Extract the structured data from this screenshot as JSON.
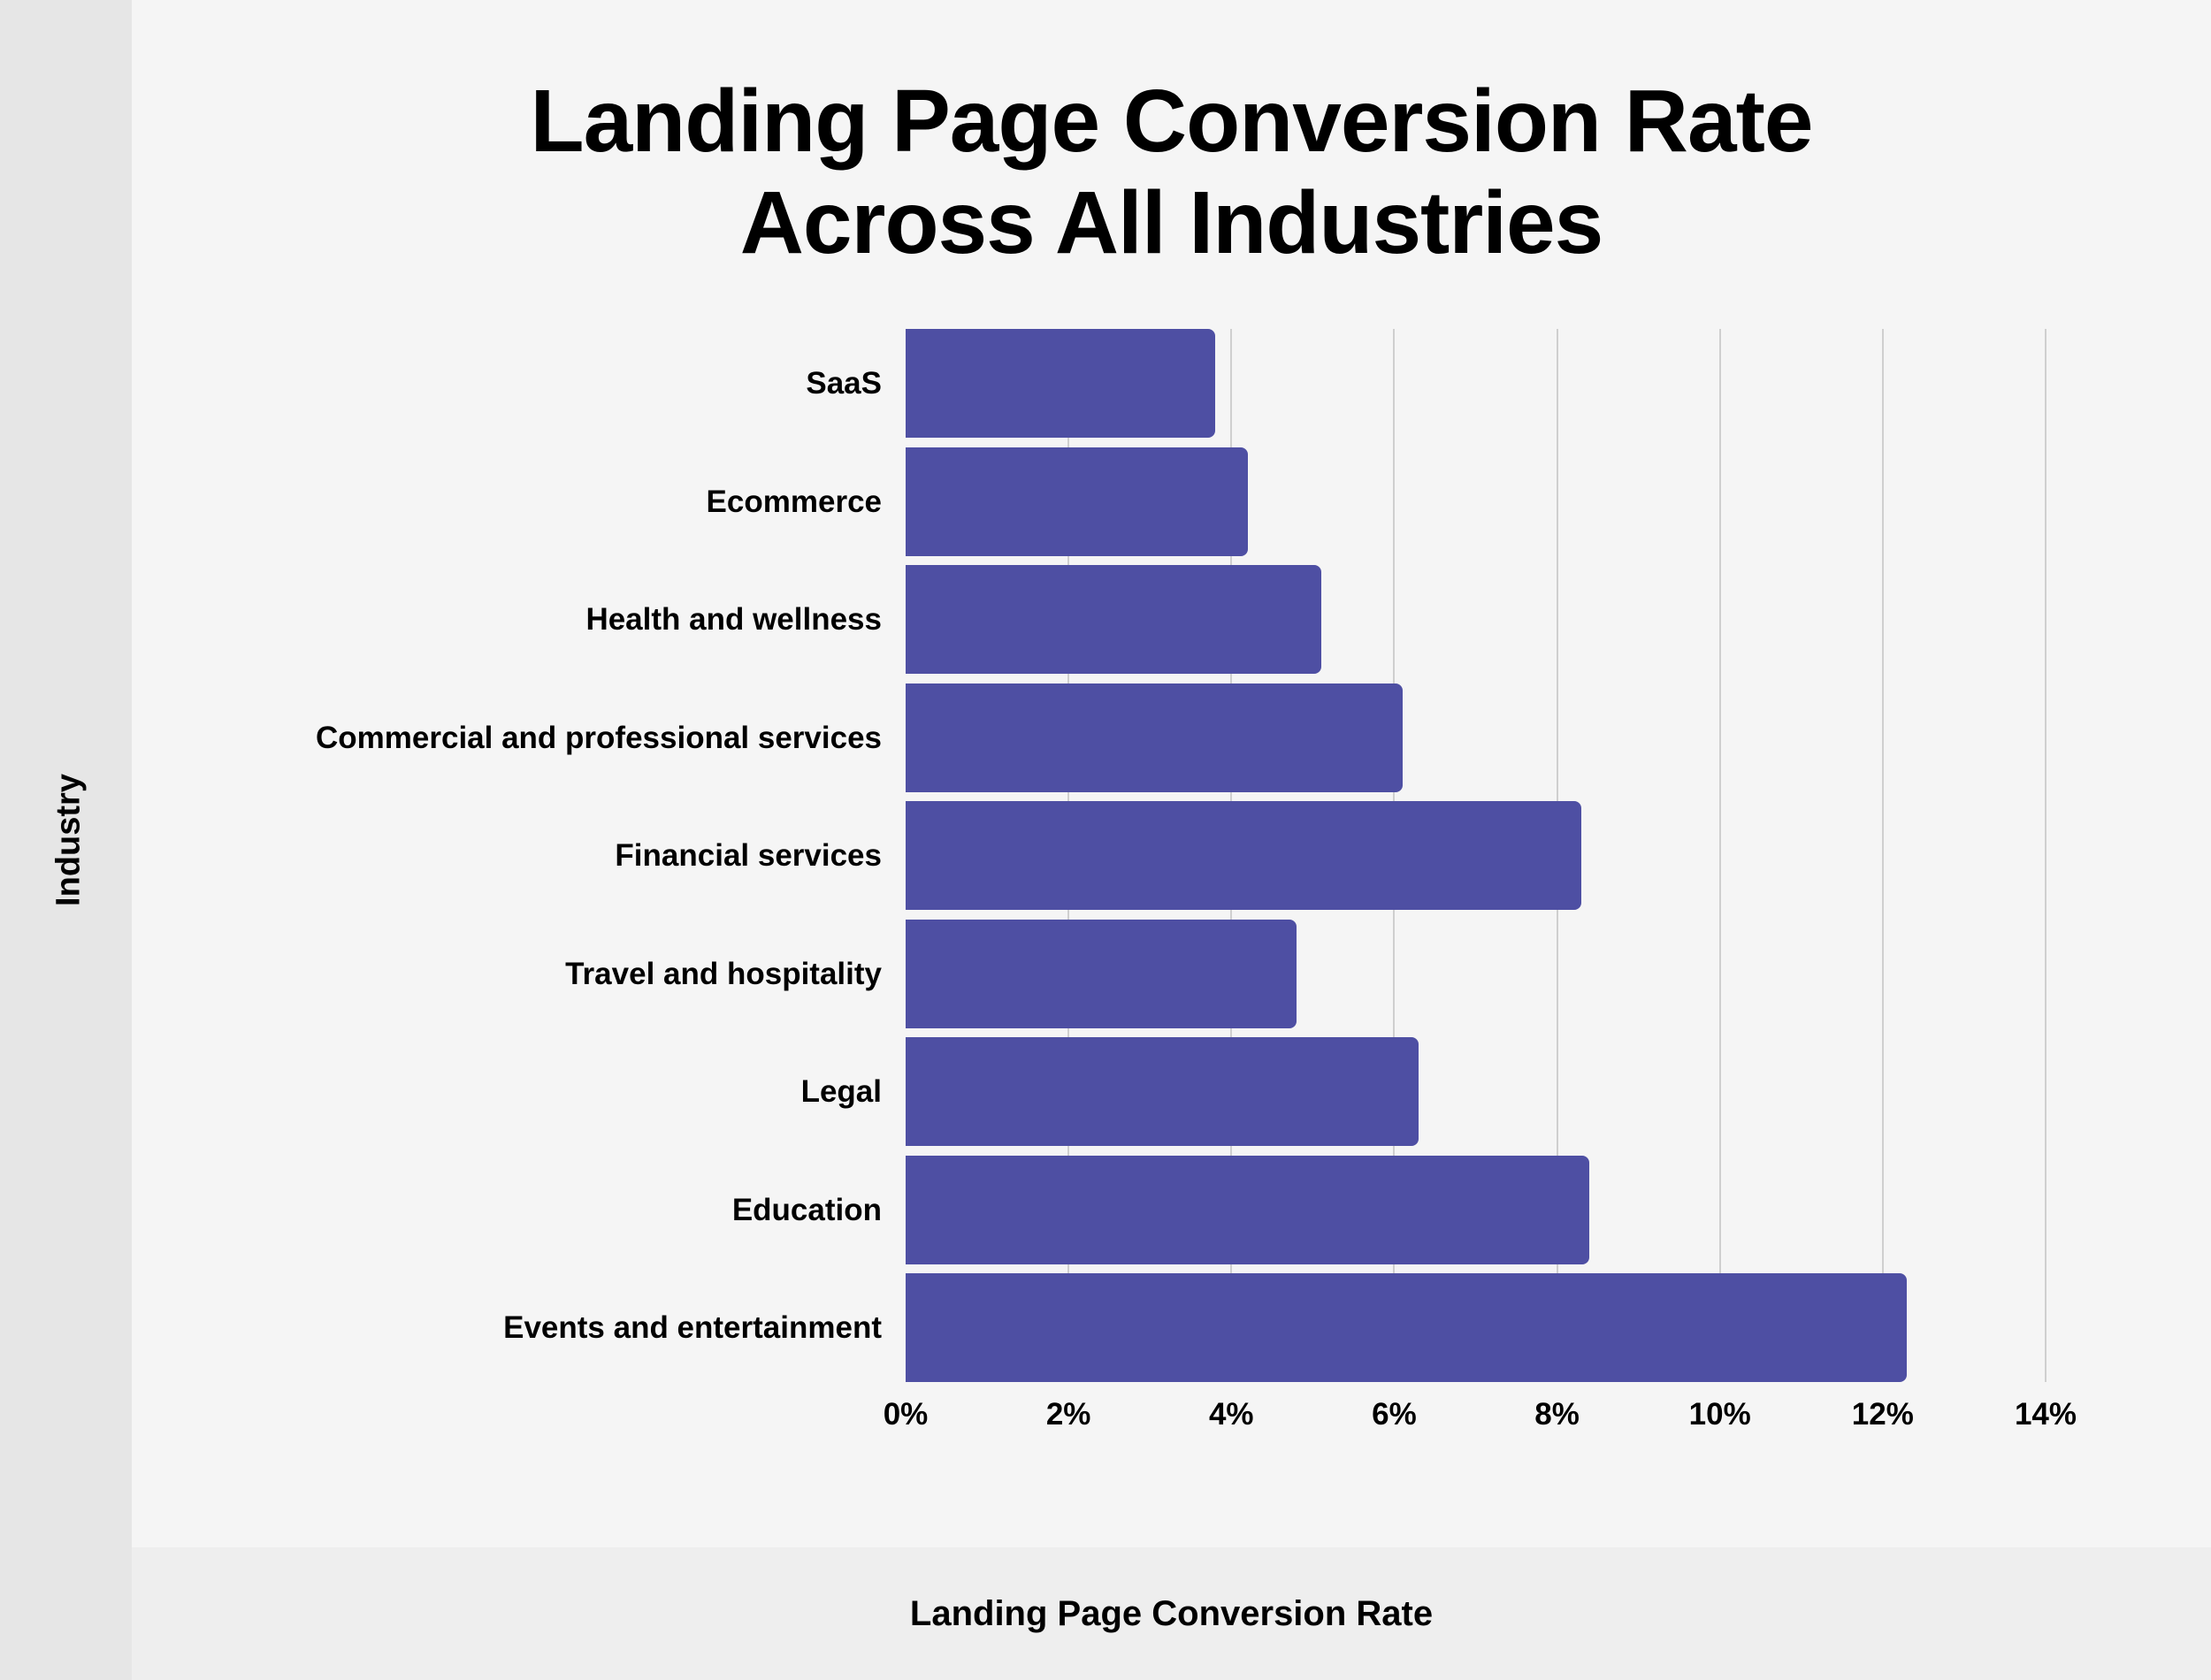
{
  "chart_data": {
    "type": "bar",
    "orientation": "horizontal",
    "title": "Landing Page Conversion Rate Across All Industries",
    "title_lines": [
      "Landing Page Conversion Rate",
      "Across All Industries"
    ],
    "xlabel": "Landing Page Conversion Rate",
    "ylabel": "Industry",
    "categories": [
      "SaaS",
      "Ecommerce",
      "Health and wellness",
      "Commercial and professional services",
      "Financial services",
      "Travel and hospitality",
      "Legal",
      "Education",
      "Events and entertainment"
    ],
    "values": [
      3.8,
      4.2,
      5.1,
      6.1,
      8.3,
      4.8,
      6.3,
      8.4,
      12.3
    ],
    "unit": "%",
    "xlim": [
      0,
      14
    ],
    "x_ticks": [
      0,
      2,
      4,
      6,
      8,
      10,
      12,
      14
    ],
    "x_tick_labels": [
      "0%",
      "2%",
      "4%",
      "6%",
      "8%",
      "10%",
      "12%",
      "14%"
    ],
    "grid": "vertical",
    "legend": null,
    "bar_color": "#4e4fa3"
  }
}
